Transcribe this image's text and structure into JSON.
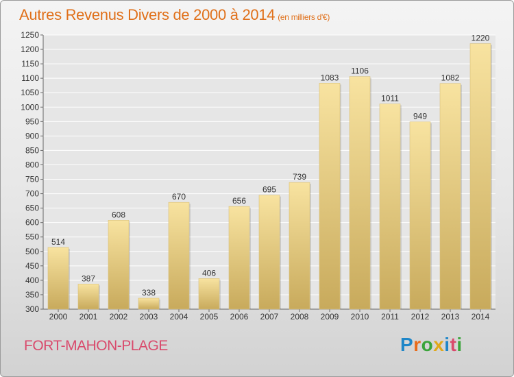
{
  "header": {
    "title": "Autres Revenus Divers de 2000 à 2014",
    "unit": "(en milliers d'€)"
  },
  "footer": {
    "location": "FORT-MAHON-PLAGE",
    "brand": "Proxiti",
    "brand_colors": [
      "#1e86c8",
      "#e86a1a",
      "#3aa43a",
      "#e0a81a",
      "#1e86c8",
      "#d94a6c",
      "#3aa43a"
    ]
  },
  "colors": {
    "bar_top": "#f8e3a0",
    "bar_bottom": "#c8aa5c",
    "grid": "#ffffff",
    "title": "#e0701a",
    "location": "#d94a6c"
  },
  "chart_data": {
    "type": "bar",
    "title": "Autres Revenus Divers de 2000 à 2014",
    "subtitle": "(en milliers d'€)",
    "xlabel": "",
    "ylabel": "",
    "categories": [
      "2000",
      "2001",
      "2002",
      "2003",
      "2004",
      "2005",
      "2006",
      "2007",
      "2008",
      "2009",
      "2010",
      "2011",
      "2012",
      "2013",
      "2014"
    ],
    "values": [
      514,
      387,
      608,
      338,
      670,
      406,
      656,
      695,
      739,
      1083,
      1106,
      1011,
      949,
      1082,
      1220
    ],
    "ylim": [
      300,
      1250
    ],
    "yticks": [
      300,
      350,
      400,
      450,
      500,
      550,
      600,
      650,
      700,
      750,
      800,
      850,
      900,
      950,
      1000,
      1050,
      1100,
      1150,
      1200,
      1250
    ],
    "grid": true,
    "data_labels": true
  }
}
